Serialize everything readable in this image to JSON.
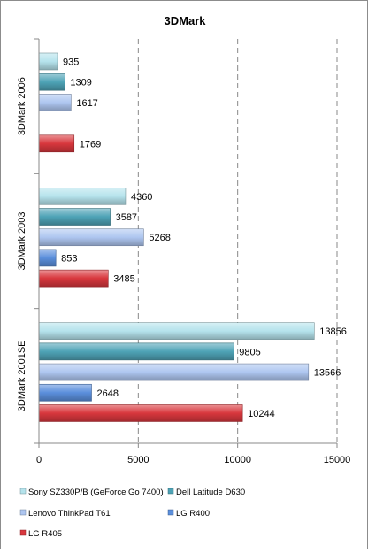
{
  "chart_data": {
    "type": "bar",
    "orientation": "horizontal",
    "title": "3DMark",
    "categories": [
      "3DMark 2006",
      "3DMark 2003",
      "3DMark 2001SE"
    ],
    "series": [
      {
        "name": "Sony SZ330P/B (GeForce Go 7400)",
        "color": "#b5e3ec",
        "values": [
          935,
          4360,
          13856
        ]
      },
      {
        "name": "Dell Latitude D630",
        "color": "#4ea3b6",
        "values": [
          1309,
          3587,
          9805
        ]
      },
      {
        "name": "Lenovo ThinkPad T61",
        "color": "#aec6f0",
        "values": [
          1617,
          5268,
          13566
        ]
      },
      {
        "name": "LG R400",
        "color": "#5b8fdc",
        "values": [
          null,
          853,
          2648
        ]
      },
      {
        "name": "LG R405",
        "color": "#d8373d",
        "values": [
          1769,
          3485,
          10244
        ]
      }
    ],
    "xlim": [
      0,
      15000
    ],
    "xticks": [
      0,
      5000,
      10000,
      15000
    ],
    "grid": "vertical-dashed",
    "legend_position": "bottom",
    "data_labels": true
  }
}
